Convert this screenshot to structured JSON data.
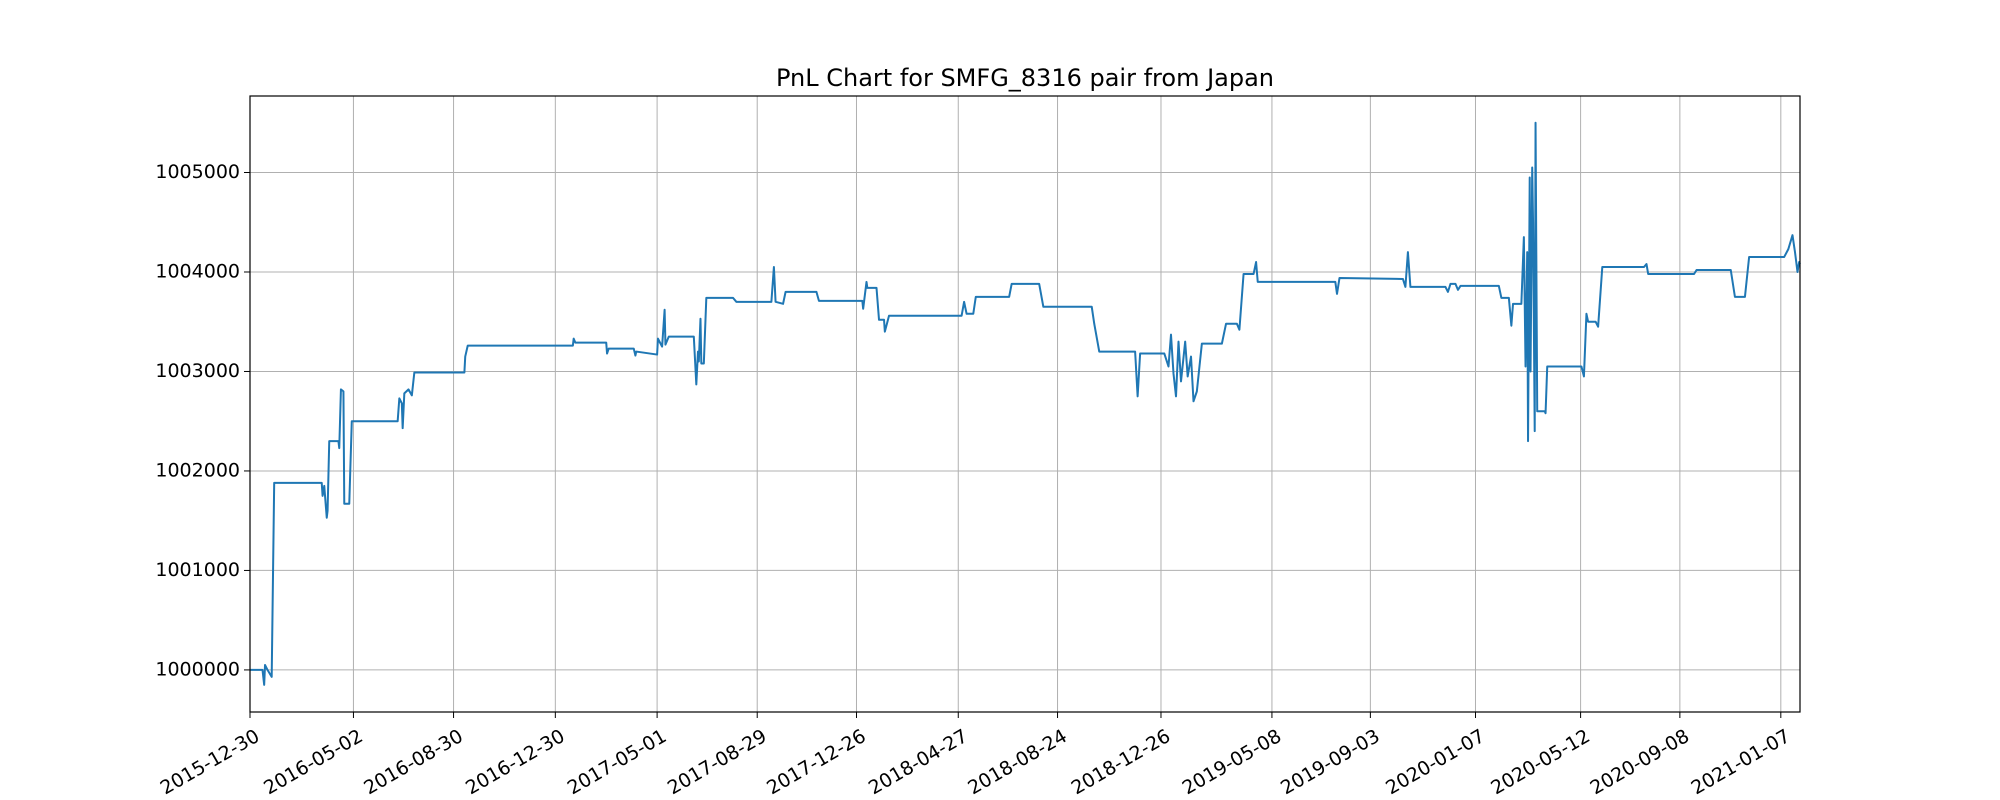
{
  "chart_data": {
    "type": "line",
    "title": "PnL Chart for SMFG_8316 pair from Japan",
    "color": "#1f77b4",
    "grid": true,
    "xlim": [
      "2015-12-30",
      "2021-01-30"
    ],
    "xticks": [
      "2015-12-30",
      "2016-05-02",
      "2016-08-30",
      "2016-12-30",
      "2017-05-01",
      "2017-08-29",
      "2017-12-26",
      "2018-04-27",
      "2018-08-24",
      "2018-12-26",
      "2019-05-08",
      "2019-09-03",
      "2020-01-07",
      "2020-05-12",
      "2020-09-08",
      "2021-01-07"
    ],
    "ylim": [
      999577,
      1005769
    ],
    "yticks": [
      1000000,
      1001000,
      1002000,
      1003000,
      1004000,
      1005000
    ],
    "x": [
      "2015-12-30",
      "2016-01-14",
      "2016-01-16",
      "2016-01-17",
      "2016-01-20",
      "2016-01-25",
      "2016-01-28",
      "2016-03-25",
      "2016-03-26",
      "2016-03-28",
      "2016-03-31",
      "2016-04-01",
      "2016-04-03",
      "2016-04-14",
      "2016-04-15",
      "2016-04-17",
      "2016-04-20",
      "2016-04-21",
      "2016-04-27",
      "2016-04-30",
      "2016-06-24",
      "2016-06-26",
      "2016-06-29",
      "2016-06-30",
      "2016-07-02",
      "2016-07-07",
      "2016-07-11",
      "2016-07-14",
      "2016-09-12",
      "2016-09-13",
      "2016-09-16",
      "2017-01-20",
      "2017-01-21",
      "2017-01-23",
      "2017-03-01",
      "2017-03-02",
      "2017-03-04",
      "2017-04-03",
      "2017-04-05",
      "2017-04-06",
      "2017-05-01",
      "2017-05-02",
      "2017-05-07",
      "2017-05-10",
      "2017-05-11",
      "2017-05-15",
      "2017-06-14",
      "2017-06-17",
      "2017-06-19",
      "2017-06-20",
      "2017-06-22",
      "2017-06-23",
      "2017-06-26",
      "2017-06-29",
      "2017-07-31",
      "2017-08-04",
      "2017-09-15",
      "2017-09-18",
      "2017-09-20",
      "2017-09-29",
      "2017-10-02",
      "2017-11-08",
      "2017-11-11",
      "2018-01-02",
      "2018-01-03",
      "2018-01-07",
      "2018-01-08",
      "2018-01-19",
      "2018-01-22",
      "2018-01-28",
      "2018-01-29",
      "2018-02-03",
      "2018-05-01",
      "2018-05-04",
      "2018-05-07",
      "2018-05-15",
      "2018-05-18",
      "2018-06-27",
      "2018-06-30",
      "2018-08-02",
      "2018-08-07",
      "2018-10-04",
      "2018-10-07",
      "2018-10-13",
      "2018-11-25",
      "2018-11-28",
      "2018-12-01",
      "2018-12-30",
      "2019-01-04",
      "2019-01-07",
      "2019-01-10",
      "2019-01-13",
      "2019-01-16",
      "2019-01-19",
      "2019-01-24",
      "2019-01-27",
      "2019-01-31",
      "2019-02-03",
      "2019-02-07",
      "2019-02-13",
      "2019-03-09",
      "2019-03-14",
      "2019-03-27",
      "2019-03-30",
      "2019-04-04",
      "2019-04-16",
      "2019-04-19",
      "2019-04-21",
      "2019-07-23",
      "2019-07-25",
      "2019-07-28",
      "2019-10-12",
      "2019-10-15",
      "2019-10-18",
      "2019-10-21",
      "2019-12-02",
      "2019-12-05",
      "2019-12-08",
      "2019-12-14",
      "2019-12-17",
      "2019-12-20",
      "2020-02-04",
      "2020-02-07",
      "2020-02-16",
      "2020-02-19",
      "2020-02-21",
      "2020-03-02",
      "2020-03-05",
      "2020-03-07",
      "2020-03-09",
      "2020-03-10",
      "2020-03-12",
      "2020-03-13",
      "2020-03-15",
      "2020-03-16",
      "2020-03-18",
      "2020-03-19",
      "2020-03-21",
      "2020-03-30",
      "2020-03-31",
      "2020-04-02",
      "2020-05-13",
      "2020-05-16",
      "2020-05-19",
      "2020-05-21",
      "2020-05-30",
      "2020-06-02",
      "2020-06-07",
      "2020-07-27",
      "2020-07-30",
      "2020-08-01",
      "2020-09-25",
      "2020-09-28",
      "2020-11-08",
      "2020-11-13",
      "2020-11-25",
      "2020-11-30",
      "2021-01-11",
      "2021-01-16",
      "2021-01-21",
      "2021-01-24",
      "2021-01-27",
      "2021-01-29",
      "2021-01-30"
    ],
    "values": [
      1000000,
      1000000,
      999850,
      1000050,
      1000000,
      999930,
      1001880,
      1001880,
      1001750,
      1001850,
      1001530,
      1001600,
      1002300,
      1002300,
      1002230,
      1002820,
      1002800,
      1001670,
      1001670,
      1002500,
      1002500,
      1002730,
      1002680,
      1002430,
      1002780,
      1002820,
      1002760,
      1002990,
      1002990,
      1003150,
      1003260,
      1003260,
      1003330,
      1003290,
      1003290,
      1003180,
      1003230,
      1003230,
      1003160,
      1003200,
      1003170,
      1003330,
      1003250,
      1003620,
      1003270,
      1003350,
      1003350,
      1002870,
      1003200,
      1003100,
      1003530,
      1003080,
      1003080,
      1003740,
      1003740,
      1003700,
      1003700,
      1004050,
      1003700,
      1003680,
      1003800,
      1003800,
      1003710,
      1003710,
      1003630,
      1003900,
      1003840,
      1003840,
      1003520,
      1003520,
      1003400,
      1003560,
      1003560,
      1003700,
      1003580,
      1003580,
      1003750,
      1003750,
      1003880,
      1003880,
      1003650,
      1003650,
      1003480,
      1003200,
      1003200,
      1002750,
      1003180,
      1003180,
      1003050,
      1003370,
      1002980,
      1002750,
      1003300,
      1002900,
      1003300,
      1002950,
      1003150,
      1002700,
      1002800,
      1003280,
      1003280,
      1003480,
      1003480,
      1003420,
      1003980,
      1003980,
      1004100,
      1003900,
      1003900,
      1003780,
      1003940,
      1003930,
      1003850,
      1004200,
      1003850,
      1003850,
      1003800,
      1003880,
      1003880,
      1003820,
      1003860,
      1003860,
      1003740,
      1003740,
      1003460,
      1003680,
      1003680,
      1004350,
      1003050,
      1004200,
      1002300,
      1004950,
      1003000,
      1005050,
      1004500,
      1002400,
      1005500,
      1002600,
      1002600,
      1002580,
      1003050,
      1003050,
      1002950,
      1003580,
      1003500,
      1003500,
      1003450,
      1004050,
      1004050,
      1004080,
      1003980,
      1003980,
      1004020,
      1004020,
      1003750,
      1003750,
      1004150,
      1004150,
      1004230,
      1004370,
      1004200,
      1004000,
      1004100,
      1004080
    ]
  }
}
